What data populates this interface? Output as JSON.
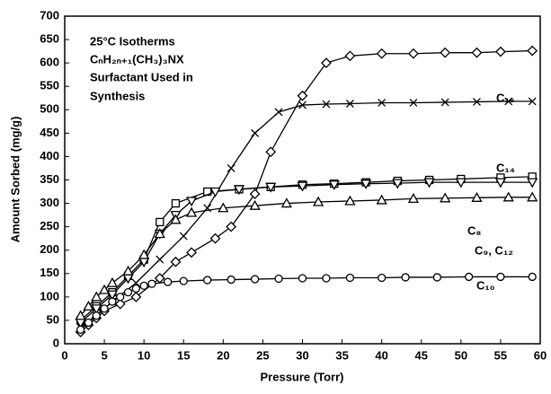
{
  "chart_data": {
    "type": "line",
    "xlabel": "Pressure (Torr)",
    "ylabel": "Amount Sorbed (mg/g)",
    "xlim": [
      0,
      60
    ],
    "xticks": [
      0,
      5,
      10,
      15,
      20,
      25,
      30,
      35,
      40,
      45,
      50,
      55,
      60
    ],
    "ylim": [
      0,
      700
    ],
    "yticks": [
      0,
      50,
      100,
      150,
      200,
      250,
      300,
      350,
      400,
      450,
      500,
      550,
      600,
      650,
      700
    ],
    "annotations": [
      "25°C Isotherms",
      "CₙH₂ₙ₊₁(CH₃)₃NX",
      "Surfactant Used in",
      "Synthesis",
      "C₁₆",
      "C₁₄",
      "C₉, C₁₂",
      "C₁₀",
      "C₈"
    ],
    "series": [
      {
        "marker": "diamond",
        "color": "#000000",
        "x": [
          2,
          3,
          4,
          5,
          7,
          9,
          12,
          14,
          16,
          19,
          21,
          24,
          26,
          30,
          33,
          36,
          40,
          44,
          48,
          52,
          55,
          59
        ],
        "values": [
          25,
          40,
          55,
          70,
          85,
          100,
          140,
          175,
          195,
          225,
          250,
          320,
          410,
          530,
          600,
          615,
          620,
          620,
          622,
          622,
          624,
          626
        ]
      },
      {
        "marker": "cross",
        "color": "#000000",
        "x": [
          2,
          4,
          6,
          9,
          12,
          15,
          18,
          21,
          24,
          27,
          30,
          33,
          36,
          40,
          44,
          48,
          52,
          56,
          59
        ],
        "values": [
          35,
          60,
          90,
          130,
          180,
          230,
          290,
          375,
          450,
          495,
          510,
          512,
          513,
          515,
          515,
          516,
          517,
          518,
          518
        ]
      },
      {
        "marker": "square",
        "color": "#000000",
        "x": [
          2,
          4,
          6,
          8,
          10,
          12,
          14,
          18,
          22,
          26,
          30,
          34,
          38,
          42,
          46,
          50,
          55,
          59
        ],
        "values": [
          50,
          80,
          110,
          145,
          180,
          260,
          300,
          325,
          330,
          335,
          340,
          342,
          345,
          348,
          350,
          352,
          355,
          357
        ]
      },
      {
        "marker": "triangle-down",
        "color": "#000000",
        "x": [
          2,
          4,
          6,
          8,
          10,
          12,
          14,
          16,
          19,
          22,
          26,
          30,
          34,
          38,
          42,
          46,
          50,
          55,
          59
        ],
        "values": [
          45,
          75,
          105,
          140,
          175,
          235,
          275,
          305,
          325,
          330,
          335,
          337,
          340,
          342,
          343,
          345,
          345,
          345,
          345
        ]
      },
      {
        "marker": "triangle-up",
        "color": "#000000",
        "x": [
          2,
          3,
          4,
          5,
          6,
          8,
          10,
          12,
          14,
          16,
          20,
          24,
          28,
          32,
          36,
          40,
          44,
          48,
          52,
          56,
          59
        ],
        "values": [
          60,
          80,
          100,
          115,
          130,
          155,
          190,
          235,
          265,
          280,
          290,
          295,
          300,
          303,
          305,
          307,
          310,
          311,
          312,
          313,
          313
        ]
      },
      {
        "marker": "circle",
        "color": "#000000",
        "x": [
          2,
          3,
          4,
          5,
          6,
          7,
          8,
          9,
          10,
          11,
          13,
          15,
          18,
          21,
          24,
          27,
          30,
          33,
          36,
          40,
          43,
          47,
          51,
          55,
          59
        ],
        "values": [
          30,
          45,
          60,
          75,
          90,
          100,
          110,
          118,
          124,
          128,
          132,
          134,
          136,
          137,
          138,
          139,
          140,
          140,
          141,
          141,
          142,
          142,
          143,
          143,
          143
        ]
      }
    ]
  }
}
